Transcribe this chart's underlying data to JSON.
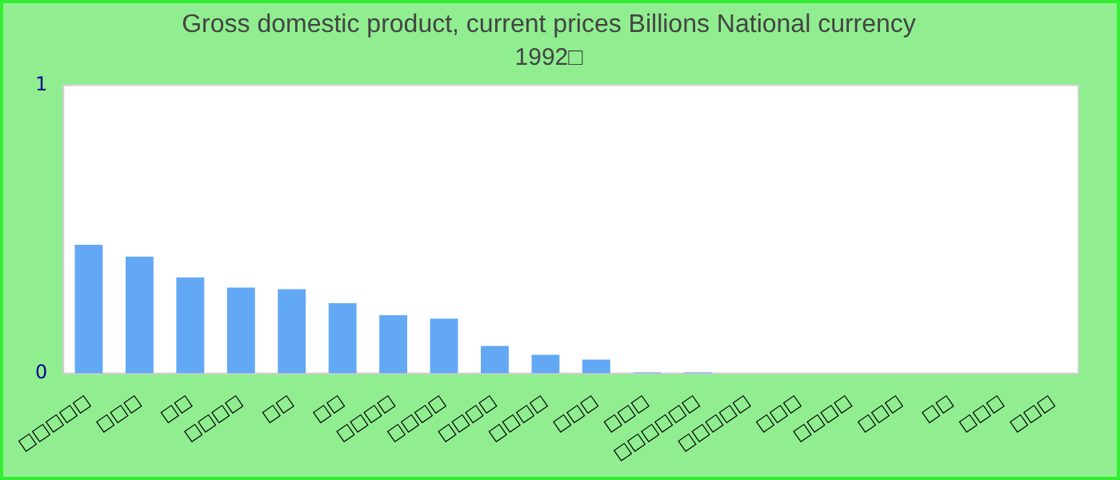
{
  "chart_data": {
    "type": "bar",
    "title": "Gross domestic product, current prices Billions National currency",
    "subtitle": "1992□",
    "categories": [
      "□□□□□",
      "□□□",
      "□□",
      "□□□□",
      "□□",
      "□□",
      "□□□□",
      "□□□□",
      "□□□□",
      "□□□□",
      "□□□",
      "□□□",
      "□□□□□□",
      "□□□□□",
      "□□□",
      "□□□□",
      "□□□",
      "□□",
      "□□□",
      "□□□"
    ],
    "values": [
      0.446,
      0.405,
      0.333,
      0.298,
      0.292,
      0.244,
      0.202,
      0.19,
      0.095,
      0.065,
      0.048,
      0.004,
      0.004,
      0,
      0,
      0,
      0,
      0,
      0,
      0
    ],
    "color": "#63a8f5",
    "ylim": [
      0,
      1
    ],
    "yticks": [
      0,
      1
    ],
    "grid": false,
    "legend": false
  }
}
